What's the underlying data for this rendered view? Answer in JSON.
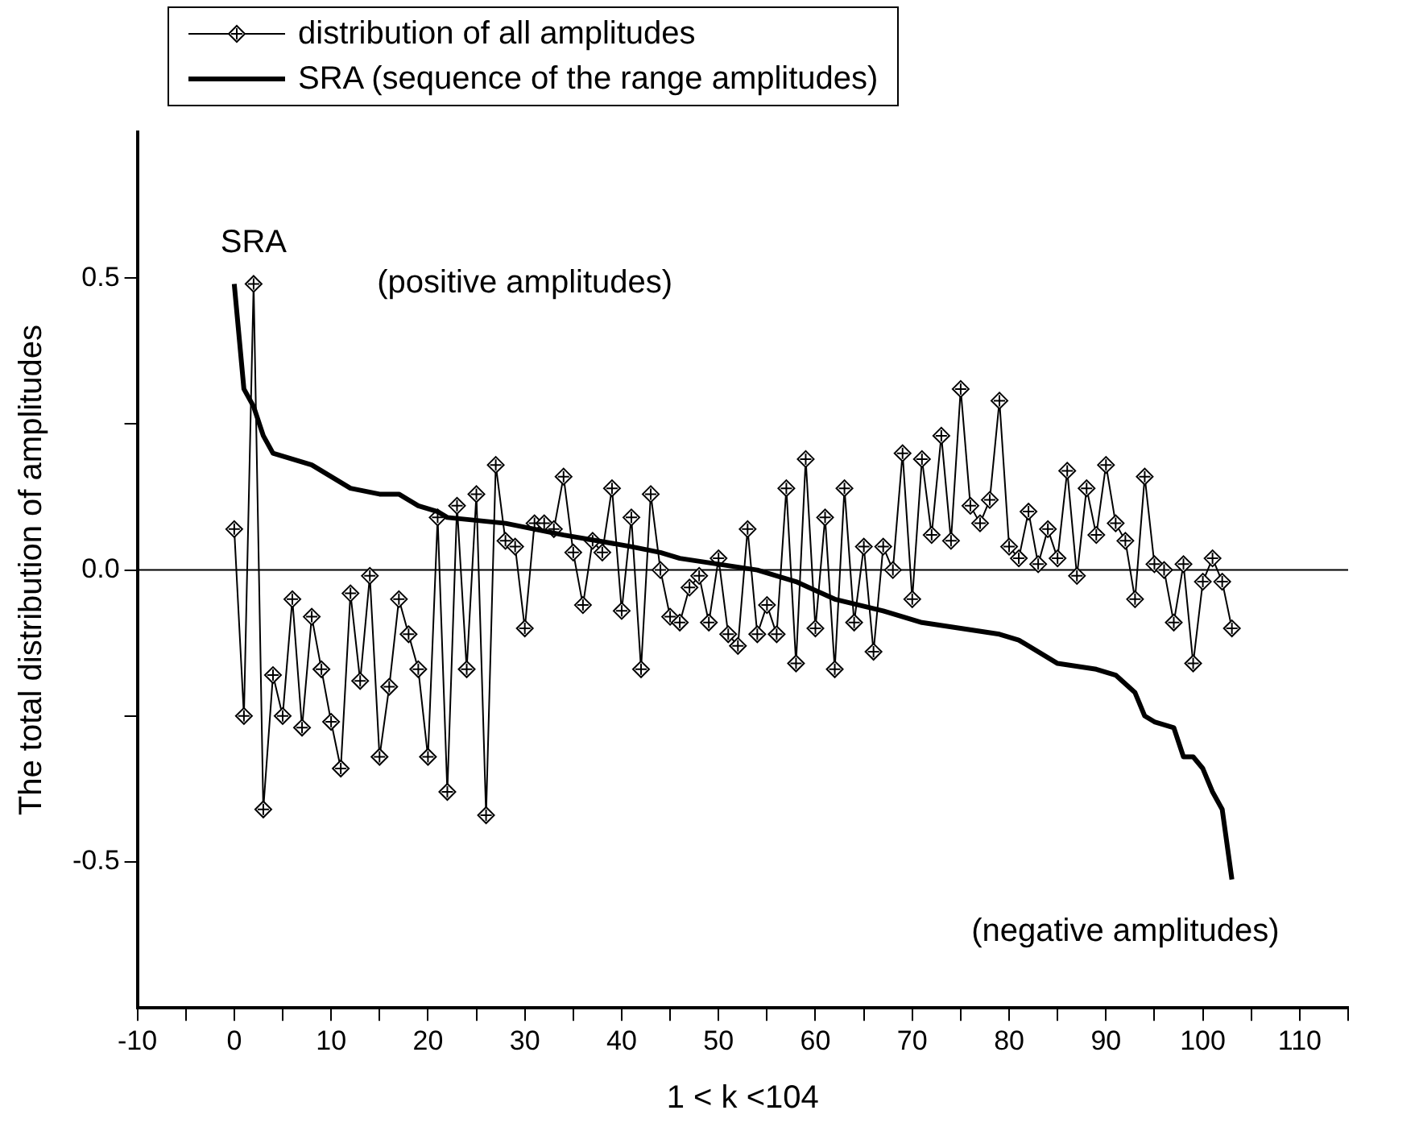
{
  "chart_data": {
    "type": "line",
    "xlabel": "1 < k <104",
    "ylabel": "The total distribution of amplitudes",
    "x": [
      0,
      1,
      2,
      3,
      4,
      5,
      6,
      7,
      8,
      9,
      10,
      11,
      12,
      13,
      14,
      15,
      16,
      17,
      18,
      19,
      20,
      21,
      22,
      23,
      24,
      25,
      26,
      27,
      28,
      29,
      30,
      31,
      32,
      33,
      34,
      35,
      36,
      37,
      38,
      39,
      40,
      41,
      42,
      43,
      44,
      45,
      46,
      47,
      48,
      49,
      50,
      51,
      52,
      53,
      54,
      55,
      56,
      57,
      58,
      59,
      60,
      61,
      62,
      63,
      64,
      65,
      66,
      67,
      68,
      69,
      70,
      71,
      72,
      73,
      74,
      75,
      76,
      77,
      78,
      79,
      80,
      81,
      82,
      83,
      84,
      85,
      86,
      87,
      88,
      89,
      90,
      91,
      92,
      93,
      94,
      95,
      96,
      97,
      98,
      99,
      100,
      101,
      102,
      103
    ],
    "series": [
      {
        "name": "distribution of all amplitudes",
        "color": "#000000",
        "marker": "diamond",
        "values": [
          0.07,
          -0.25,
          0.49,
          -0.41,
          -0.18,
          -0.25,
          -0.05,
          -0.27,
          -0.08,
          -0.17,
          -0.26,
          -0.34,
          -0.04,
          -0.19,
          -0.01,
          -0.32,
          -0.2,
          -0.05,
          -0.11,
          -0.17,
          -0.32,
          0.09,
          -0.38,
          0.11,
          -0.17,
          0.13,
          -0.42,
          0.18,
          0.05,
          0.04,
          -0.1,
          0.08,
          0.08,
          0.07,
          0.16,
          0.03,
          -0.06,
          0.05,
          0.03,
          0.14,
          -0.07,
          0.09,
          -0.17,
          0.13,
          0,
          -0.08,
          -0.09,
          -0.03,
          -0.01,
          -0.09,
          0.02,
          -0.11,
          -0.13,
          0.07,
          -0.11,
          -0.06,
          -0.11,
          0.14,
          -0.16,
          0.19,
          -0.1,
          0.09,
          -0.17,
          0.14,
          -0.09,
          0.04,
          -0.14,
          0.04,
          0,
          0.2,
          -0.05,
          0.19,
          0.06,
          0.23,
          0.05,
          0.31,
          0.11,
          0.08,
          0.12,
          0.29,
          0.04,
          0.02,
          0.1,
          0.01,
          0.07,
          0.02,
          0.17,
          -0.01,
          0.14,
          0.06,
          0.18,
          0.08,
          0.05,
          -0.05,
          0.16,
          0.01,
          0,
          -0.09,
          0.01,
          -0.16,
          -0.02,
          0.02,
          -0.02,
          -0.1
        ]
      },
      {
        "name": "SRA (sequence of the range amplitudes)",
        "color": "#000000",
        "marker": "none",
        "x": [
          0,
          1,
          2,
          3,
          4,
          6,
          8,
          10,
          12,
          15,
          17,
          19,
          21,
          22,
          28,
          34,
          41,
          44,
          46,
          50,
          54,
          56,
          58,
          62,
          67,
          71,
          75,
          79,
          81,
          85,
          89,
          91,
          93,
          94,
          95,
          97,
          98,
          99,
          100,
          101,
          102,
          103
        ],
        "values": [
          0.49,
          0.31,
          0.28,
          0.23,
          0.2,
          0.19,
          0.18,
          0.16,
          0.14,
          0.13,
          0.13,
          0.11,
          0.1,
          0.09,
          0.08,
          0.06,
          0.04,
          0.03,
          0.02,
          0.01,
          0,
          -0.01,
          -0.02,
          -0.05,
          -0.07,
          -0.09,
          -0.1,
          -0.11,
          -0.12,
          -0.16,
          -0.17,
          -0.18,
          -0.21,
          -0.25,
          -0.26,
          -0.27,
          -0.32,
          -0.32,
          -0.34,
          -0.38,
          -0.41,
          -0.53
        ]
      }
    ],
    "xlim": [
      -10,
      115
    ],
    "xticks": [
      -10,
      {
        "value": -5,
        "label": null
      },
      0,
      {
        "value": 5,
        "label": null
      },
      10,
      {
        "value": 15,
        "label": null
      },
      20,
      {
        "value": 25,
        "label": null
      },
      30,
      {
        "value": 35,
        "label": null
      },
      40,
      {
        "value": 45,
        "label": null
      },
      50,
      {
        "value": 55,
        "label": null
      },
      60,
      {
        "value": 65,
        "label": null
      },
      70,
      {
        "value": 75,
        "label": null
      },
      80,
      {
        "value": 85,
        "label": null
      },
      90,
      {
        "value": 95,
        "label": null
      },
      100,
      {
        "value": 105,
        "label": null
      },
      110,
      {
        "value": 115,
        "label": null
      }
    ],
    "ylim": [
      -0.75,
      0.75
    ],
    "yticks": [
      {
        "value": -0.5,
        "label": "-0.5"
      },
      {
        "value": -0.25,
        "label": null
      },
      {
        "value": 0,
        "label": "0.0"
      },
      {
        "value": 0.25,
        "label": null
      },
      {
        "value": 0.5,
        "label": "0.5"
      }
    ],
    "ref_lines": [
      {
        "axis": "y",
        "value": 0,
        "color": "#000000"
      }
    ],
    "annotations": [
      "SRA",
      "(positive amplitudes)",
      "(negative amplitudes)"
    ],
    "legend": "top left",
    "grid": false
  }
}
